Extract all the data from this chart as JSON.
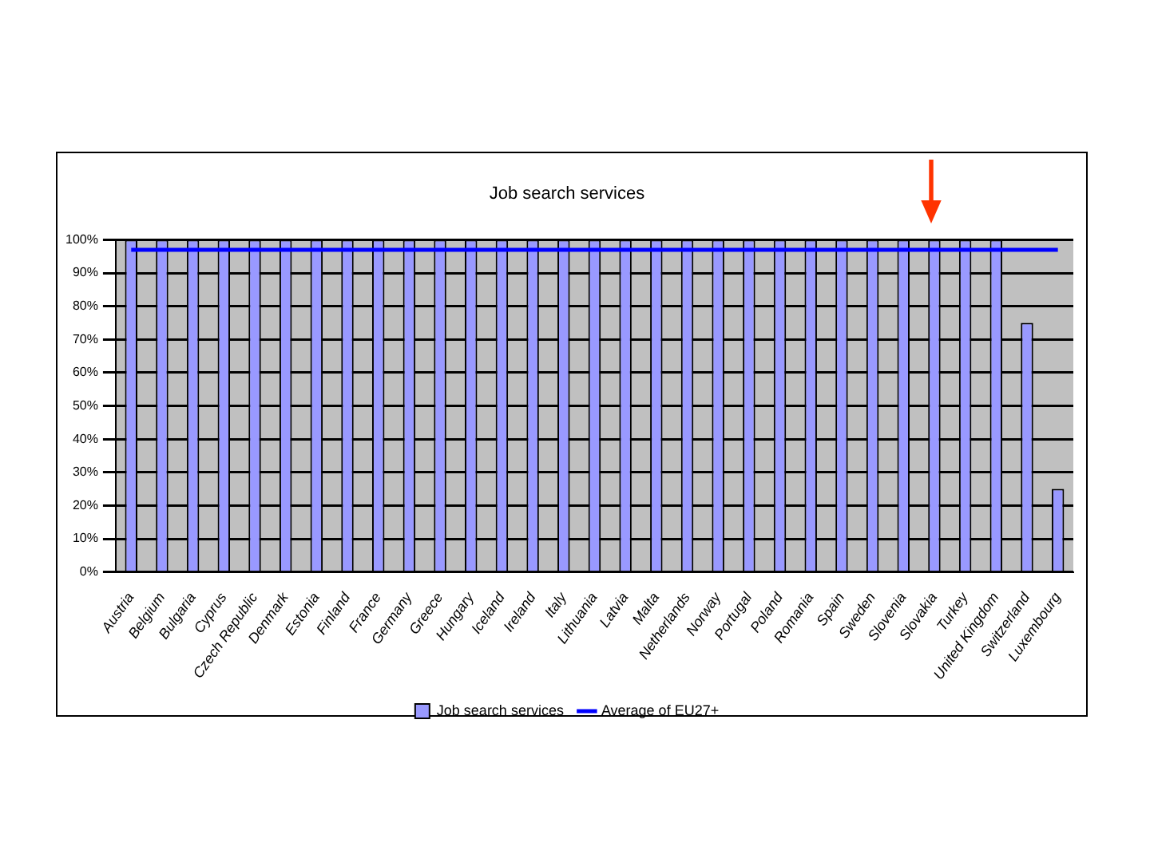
{
  "chart_data": {
    "type": "bar",
    "title": "Job search services",
    "categories": [
      "Austria",
      "Belgium",
      "Bulgaria",
      "Cyprus",
      "Czech Republic",
      "Denmark",
      "Estonia",
      "Finland",
      "France",
      "Germany",
      "Greece",
      "Hungary",
      "Iceland",
      "Ireland",
      "Italy",
      "Lithuania",
      "Latvia",
      "Malta",
      "Netherlands",
      "Norway",
      "Portugal",
      "Poland",
      "Romania",
      "Spain",
      "Sweden",
      "Slovenia",
      "Slovakia",
      "Turkey",
      "United Kingdom",
      "Switzerland",
      "Luxembourg"
    ],
    "series": [
      {
        "name": "Job search services",
        "color": "#9999ff",
        "values": [
          100,
          100,
          100,
          100,
          100,
          100,
          100,
          100,
          100,
          100,
          100,
          100,
          100,
          100,
          100,
          100,
          100,
          100,
          100,
          100,
          100,
          100,
          100,
          100,
          100,
          100,
          100,
          100,
          100,
          75,
          25
        ]
      },
      {
        "name": "Average of EU27+",
        "type": "line",
        "color": "#0000ff",
        "values": [
          97,
          97,
          97,
          97,
          97,
          97,
          97,
          97,
          97,
          97,
          97,
          97,
          97,
          97,
          97,
          97,
          97,
          97,
          97,
          97,
          97,
          97,
          97,
          97,
          97,
          97,
          97,
          97,
          97,
          97,
          97
        ]
      }
    ],
    "ylim": [
      0,
      100
    ],
    "yticks": [
      {
        "value": 0,
        "label": "0%"
      },
      {
        "value": 10,
        "label": "10%"
      },
      {
        "value": 20,
        "label": "20%"
      },
      {
        "value": 30,
        "label": "30%"
      },
      {
        "value": 40,
        "label": "40%"
      },
      {
        "value": 50,
        "label": "50%"
      },
      {
        "value": 60,
        "label": "60%"
      },
      {
        "value": 70,
        "label": "70%"
      },
      {
        "value": 80,
        "label": "80%"
      },
      {
        "value": 90,
        "label": "90%"
      },
      {
        "value": 100,
        "label": "100%"
      }
    ],
    "grid": "y",
    "legend": "bottom"
  }
}
